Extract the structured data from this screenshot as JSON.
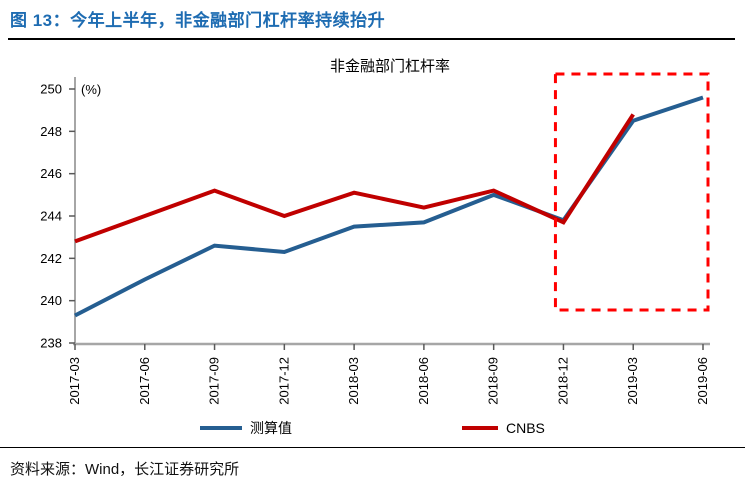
{
  "header": {
    "title": "图 13：今年上半年，非金融部门杠杆率持续抬升"
  },
  "chart": {
    "title": "非金融部门杠杆率",
    "unit_label": "(%)"
  },
  "footer": {
    "source": "资料来源：Wind，长江证券研究所"
  },
  "colors": {
    "title_accent": "#1E6CB2",
    "axis": "#A6A6A6",
    "tick": "#595959",
    "text": "#000000",
    "series_blue": "#255E91",
    "series_red": "#C00000",
    "highlight_box": "#FF0000"
  },
  "chart_data": {
    "type": "line",
    "title": "非金融部门杠杆率",
    "ylabel": "(%)",
    "categories": [
      "2017-03",
      "2017-06",
      "2017-09",
      "2017-12",
      "2018-03",
      "2018-06",
      "2018-09",
      "2018-12",
      "2019-03",
      "2019-06"
    ],
    "series": [
      {
        "name": "测算值",
        "color": "#255E91",
        "values": [
          239.3,
          241.0,
          242.6,
          242.3,
          243.5,
          243.7,
          245.0,
          243.8,
          248.5,
          249.6
        ]
      },
      {
        "name": "CNBS",
        "color": "#C00000",
        "values": [
          242.8,
          244.0,
          245.2,
          244.0,
          245.1,
          244.4,
          245.2,
          243.7,
          248.8,
          null
        ]
      }
    ],
    "ylim": [
      238,
      250
    ],
    "yticks": [
      238,
      240,
      242,
      244,
      246,
      248,
      250
    ],
    "grid": false,
    "legend_position": "bottom",
    "annotation_box": {
      "from_category": "2018-12",
      "to_category": "2019-06",
      "color": "#FF0000",
      "style": "dashed"
    }
  }
}
